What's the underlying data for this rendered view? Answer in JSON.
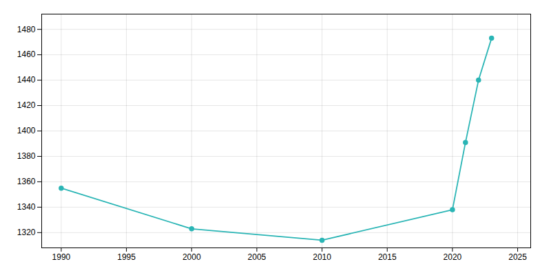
{
  "chart_data": {
    "type": "line",
    "x": [
      1990,
      2000,
      2010,
      2020,
      2021,
      2022,
      2023
    ],
    "values": [
      1355,
      1323,
      1314,
      1338,
      1391,
      1440,
      1473
    ],
    "color": "#2ab5b5",
    "marker": "circle",
    "xlim": [
      1988.5,
      2026
    ],
    "ylim": [
      1308,
      1492
    ],
    "xticks": [
      1990,
      1995,
      2000,
      2005,
      2010,
      2015,
      2020,
      2025
    ],
    "yticks": [
      1320,
      1340,
      1360,
      1380,
      1400,
      1420,
      1440,
      1460,
      1480
    ],
    "grid": true
  }
}
